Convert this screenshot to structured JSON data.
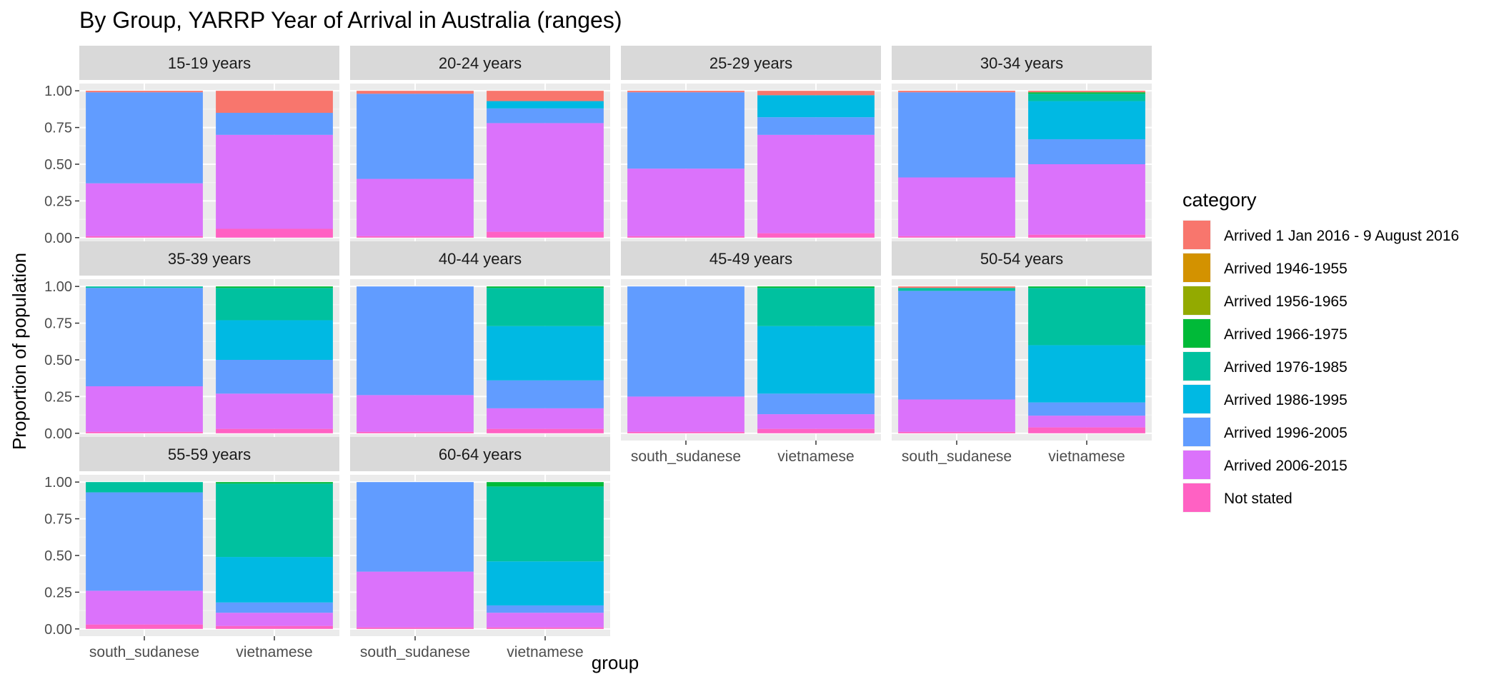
{
  "chart_data": {
    "type": "bar",
    "stacked": true,
    "faceted": true,
    "title": "By Group,  YARRP Year of Arrival in Australia (ranges)",
    "xlabel": "group",
    "ylabel": "Proportion of population",
    "ylim": [
      0,
      1
    ],
    "yticks": [
      "0.00",
      "0.25",
      "0.50",
      "0.75",
      "1.00"
    ],
    "categories": [
      "south_sudanese",
      "vietnamese"
    ],
    "legend": {
      "title": "category",
      "position": "right",
      "entries": [
        {
          "name": "Arrived 1 Jan 2016 - 9 August 2016",
          "color": "#F8766D"
        },
        {
          "name": "Arrived 1946-1955",
          "color": "#D39200"
        },
        {
          "name": "Arrived 1956-1965",
          "color": "#93AA00"
        },
        {
          "name": "Arrived 1966-1975",
          "color": "#00BA38"
        },
        {
          "name": "Arrived 1976-1985",
          "color": "#00C19F"
        },
        {
          "name": "Arrived 1986-1995",
          "color": "#00B9E3"
        },
        {
          "name": "Arrived 1996-2005",
          "color": "#619CFF"
        },
        {
          "name": "Arrived 2006-2015",
          "color": "#DB72FB"
        },
        {
          "name": "Not stated",
          "color": "#FF61C3"
        }
      ]
    },
    "panels": [
      {
        "label": "15-19 years",
        "bars": [
          [
            0.01,
            0,
            0,
            0,
            0,
            0,
            0.62,
            0.36,
            0.01
          ],
          [
            0.15,
            0,
            0,
            0,
            0,
            0,
            0.15,
            0.64,
            0.06
          ]
        ]
      },
      {
        "label": "20-24 years",
        "bars": [
          [
            0.02,
            0,
            0,
            0,
            0,
            0,
            0.58,
            0.39,
            0.01
          ],
          [
            0.07,
            0,
            0,
            0,
            0,
            0.05,
            0.1,
            0.74,
            0.04
          ]
        ]
      },
      {
        "label": "25-29 years",
        "bars": [
          [
            0.01,
            0,
            0,
            0,
            0,
            0,
            0.52,
            0.46,
            0.01
          ],
          [
            0.03,
            0,
            0,
            0,
            0,
            0.15,
            0.12,
            0.67,
            0.03
          ]
        ]
      },
      {
        "label": "30-34 years",
        "bars": [
          [
            0.01,
            0,
            0,
            0,
            0,
            0,
            0.58,
            0.4,
            0.01
          ],
          [
            0.01,
            0,
            0,
            0.01,
            0.05,
            0.26,
            0.17,
            0.48,
            0.02
          ]
        ]
      },
      {
        "label": "35-39 years",
        "bars": [
          [
            0,
            0,
            0,
            0,
            0.01,
            0,
            0.67,
            0.31,
            0.01
          ],
          [
            0,
            0,
            0,
            0.01,
            0.22,
            0.27,
            0.23,
            0.24,
            0.03
          ]
        ]
      },
      {
        "label": "40-44 years",
        "bars": [
          [
            0,
            0,
            0,
            0,
            0,
            0,
            0.74,
            0.25,
            0.01
          ],
          [
            0,
            0,
            0,
            0.01,
            0.26,
            0.37,
            0.19,
            0.14,
            0.03
          ]
        ]
      },
      {
        "label": "45-49 years",
        "bars": [
          [
            0,
            0,
            0,
            0,
            0,
            0,
            0.75,
            0.24,
            0.01
          ],
          [
            0,
            0,
            0,
            0.01,
            0.26,
            0.46,
            0.14,
            0.1,
            0.03
          ]
        ]
      },
      {
        "label": "50-54 years",
        "bars": [
          [
            0.01,
            0,
            0,
            0,
            0.02,
            0,
            0.74,
            0.22,
            0.01
          ],
          [
            0,
            0,
            0,
            0.01,
            0.39,
            0.39,
            0.09,
            0.08,
            0.04
          ]
        ]
      },
      {
        "label": "55-59 years",
        "bars": [
          [
            0,
            0,
            0,
            0,
            0.07,
            0,
            0.67,
            0.23,
            0.03
          ],
          [
            0,
            0,
            0,
            0.01,
            0.5,
            0.31,
            0.07,
            0.09,
            0.02
          ]
        ]
      },
      {
        "label": "60-64 years",
        "bars": [
          [
            0,
            0,
            0,
            0,
            0,
            0,
            0.61,
            0.38,
            0.01
          ],
          [
            0,
            0,
            0,
            0.03,
            0.51,
            0.3,
            0.05,
            0.1,
            0.01
          ]
        ]
      }
    ]
  }
}
